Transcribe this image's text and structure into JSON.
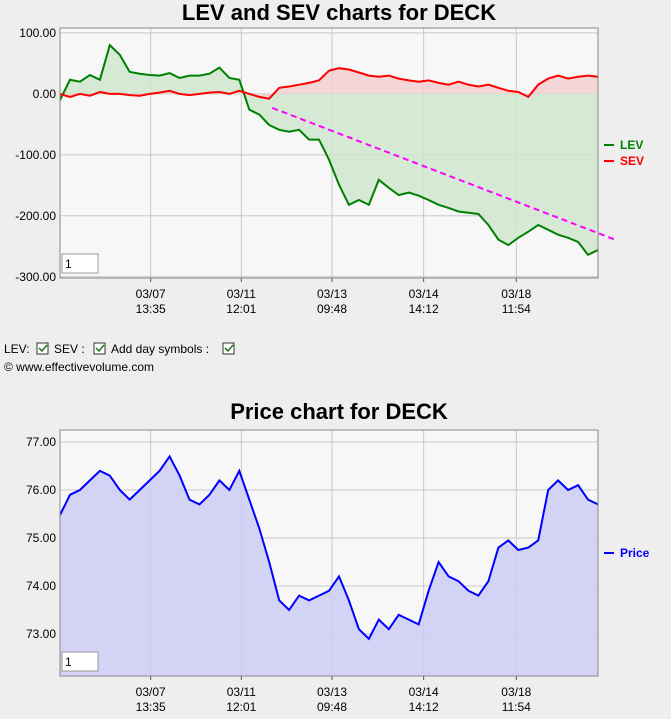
{
  "chart_data": [
    {
      "type": "line",
      "title": "LEV and SEV charts for DECK",
      "zoom_box": "1",
      "x": [
        0,
        1,
        2,
        3,
        4,
        5,
        6,
        7,
        8,
        9,
        10,
        11,
        12,
        13,
        14,
        15,
        16,
        17,
        18,
        19,
        20,
        21,
        22,
        23,
        24,
        25,
        26,
        27,
        28,
        29,
        30,
        31,
        32,
        33,
        34,
        35,
        36,
        37,
        38,
        39,
        40,
        41,
        42,
        43,
        44,
        45,
        46,
        47,
        48,
        49,
        50,
        51,
        52,
        53,
        54
      ],
      "xlim": [
        0,
        54
      ],
      "xticks": [
        {
          "value": 9.1,
          "label": "03/07 13:35"
        },
        {
          "value": 18.2,
          "label": "03/11 12:01"
        },
        {
          "value": 27.3,
          "label": "03/13 09:48"
        },
        {
          "value": 36.5,
          "label": "03/14 14:12"
        },
        {
          "value": 45.8,
          "label": "03/18 11:54"
        }
      ],
      "ylim": [
        -302,
        108
      ],
      "yticks": [
        {
          "value": 100,
          "label": "100.00"
        },
        {
          "value": 0,
          "label": "0.00"
        },
        {
          "value": -100,
          "label": "-100.00"
        },
        {
          "value": -200,
          "label": "-200.00"
        },
        {
          "value": -300,
          "label": "-300.00"
        }
      ],
      "grid": true,
      "fill": "zero",
      "series": [
        {
          "name": "LEV",
          "color": "#008000",
          "fill_color": "#cfe6cf",
          "values": [
            -10,
            23,
            20,
            31,
            23,
            80,
            64,
            36,
            33,
            31,
            30,
            34,
            26,
            30,
            30,
            33,
            43,
            26,
            23,
            -26,
            -34,
            -51,
            -59,
            -62,
            -59,
            -75,
            -75,
            -108,
            -149,
            -182,
            -174,
            -182,
            -141,
            -154,
            -166,
            -162,
            -167,
            -174,
            -182,
            -187,
            -193,
            -195,
            -197,
            -215,
            -239,
            -248,
            -236,
            -226,
            -215,
            -223,
            -231,
            -236,
            -243,
            -264,
            -256
          ]
        },
        {
          "name": "SEV",
          "color": "#ff0000",
          "fill_color": "#f5d0d0",
          "values": [
            0,
            -5,
            0,
            -3,
            3,
            0,
            0,
            -2,
            -3,
            0,
            2,
            5,
            0,
            -2,
            0,
            2,
            3,
            0,
            5,
            0,
            -5,
            -8,
            10,
            12,
            15,
            18,
            22,
            38,
            42,
            40,
            35,
            30,
            28,
            30,
            25,
            22,
            20,
            22,
            18,
            15,
            20,
            15,
            12,
            15,
            10,
            5,
            3,
            -5,
            15,
            25,
            30,
            25,
            28,
            30,
            28
          ]
        }
      ],
      "trend_line": {
        "x": [
          21.3,
          55.7
        ],
        "values": [
          -23,
          -239
        ],
        "color": "#ff00ff"
      }
    },
    {
      "type": "line",
      "title": "Price chart for DECK",
      "zoom_box": "1",
      "x": [
        0,
        1,
        2,
        3,
        4,
        5,
        6,
        7,
        8,
        9,
        10,
        11,
        12,
        13,
        14,
        15,
        16,
        17,
        18,
        19,
        20,
        21,
        22,
        23,
        24,
        25,
        26,
        27,
        28,
        29,
        30,
        31,
        32,
        33,
        34,
        35,
        36,
        37,
        38,
        39,
        40,
        41,
        42,
        43,
        44,
        45,
        46,
        47,
        48,
        49,
        50,
        51,
        52,
        53,
        54
      ],
      "xlim": [
        0,
        54
      ],
      "xticks": [
        {
          "value": 9.1,
          "label": "03/07 13:35"
        },
        {
          "value": 18.2,
          "label": "03/11 12:01"
        },
        {
          "value": 27.3,
          "label": "03/13 09:48"
        },
        {
          "value": 36.5,
          "label": "03/14 14:12"
        },
        {
          "value": 45.8,
          "label": "03/18 11:54"
        }
      ],
      "ylim": [
        72.125,
        77.25
      ],
      "yticks": [
        {
          "value": 77,
          "label": "77.00"
        },
        {
          "value": 76,
          "label": "76.00"
        },
        {
          "value": 75,
          "label": "75.00"
        },
        {
          "value": 74,
          "label": "74.00"
        },
        {
          "value": 73,
          "label": "73.00"
        }
      ],
      "grid": true,
      "fill": "bottom",
      "series": [
        {
          "name": "Price",
          "color": "#0000ff",
          "fill_color": "#ccccf5",
          "values": [
            75.48,
            75.9,
            76.0,
            76.2,
            76.4,
            76.3,
            76.0,
            75.8,
            76.0,
            76.2,
            76.4,
            76.7,
            76.3,
            75.8,
            75.7,
            75.9,
            76.2,
            76.0,
            76.4,
            75.8,
            75.2,
            74.5,
            73.7,
            73.5,
            73.8,
            73.7,
            73.8,
            73.9,
            74.2,
            73.7,
            73.1,
            72.9,
            73.3,
            73.1,
            73.4,
            73.3,
            73.2,
            73.9,
            74.5,
            74.2,
            74.1,
            73.9,
            73.8,
            74.1,
            74.8,
            74.95,
            74.75,
            74.8,
            74.95,
            76.0,
            76.2,
            76.0,
            76.1,
            75.8,
            75.7
          ]
        }
      ]
    }
  ],
  "controls": {
    "checkboxes": [
      "LEV:",
      "SEV :",
      "Add day symbols :"
    ],
    "copyright": "© www.effectivevolume.com"
  }
}
